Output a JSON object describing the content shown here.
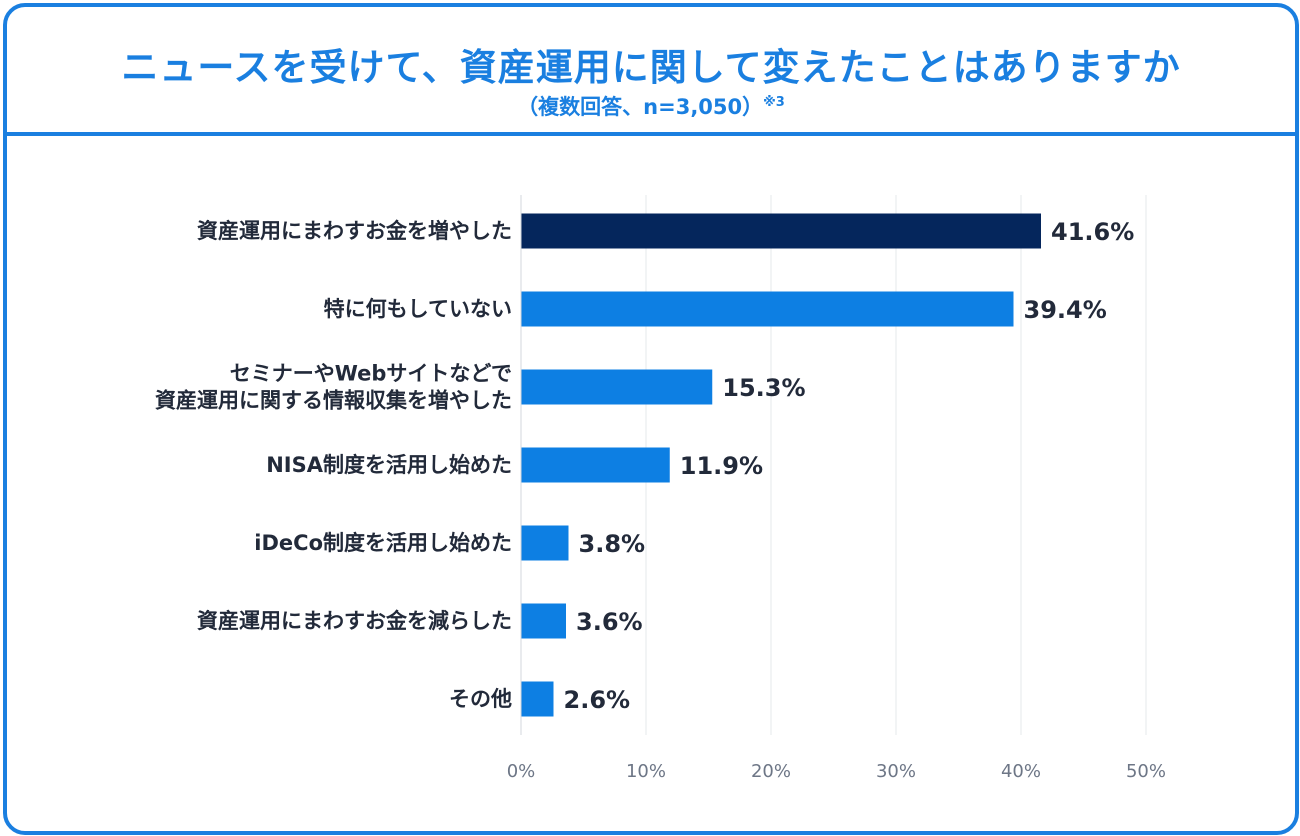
{
  "header": {
    "title": "ニュースを受けて、資産運用に関して変えたことはありますか",
    "subtitle": "（複数回答、n=3,050）",
    "note": "※3"
  },
  "colors": {
    "accent": "#1a7fe0",
    "bar_highlight": "#05265c",
    "bar_default": "#0d7fe3",
    "grid": "#e6e8eb"
  },
  "chart_data": {
    "type": "bar",
    "orientation": "horizontal",
    "title": "ニュースを受けて、資産運用に関して変えたことはありますか",
    "subtitle": "（複数回答、n=3,050）",
    "categories": [
      [
        "資産運用にまわすお金を増やした"
      ],
      [
        "特に何もしていない"
      ],
      [
        "セミナーやWebサイトなどで",
        "資産運用に関する情報収集を増やした"
      ],
      [
        "NISA制度を活用し始めた"
      ],
      [
        "iDeCo制度を活用し始めた"
      ],
      [
        "資産運用にまわすお金を減らした"
      ],
      [
        "その他"
      ]
    ],
    "values": [
      41.6,
      39.4,
      15.3,
      11.9,
      3.8,
      3.6,
      2.6
    ],
    "value_labels": [
      "41.6%",
      "39.4%",
      "15.3%",
      "11.9%",
      "3.8%",
      "3.6%",
      "2.6%"
    ],
    "highlight_index": 0,
    "xlim": [
      0,
      50
    ],
    "ticks": [
      0,
      10,
      20,
      30,
      40,
      50
    ],
    "tick_labels": [
      "0%",
      "10%",
      "20%",
      "30%",
      "40%",
      "50%"
    ],
    "xlabel": "",
    "ylabel": "",
    "grid": true
  }
}
